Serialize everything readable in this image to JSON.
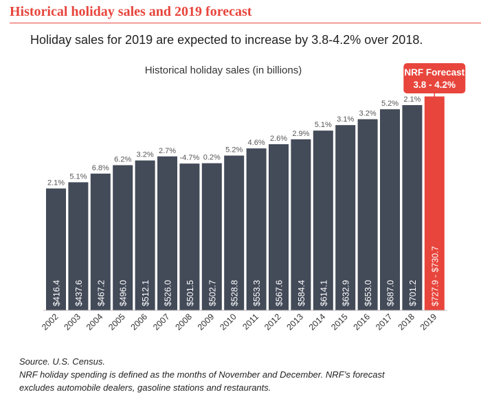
{
  "header": {
    "title": "Historical holiday sales and 2019 forecast",
    "subtitle": "Holiday sales for 2019 are expected to increase by 3.8-4.2% over 2018."
  },
  "callout": {
    "line1": "NRF Forecast",
    "line2": "3.8 - 4.2%"
  },
  "colors": {
    "accent": "#e8453c",
    "bar": "#434a58",
    "forecast_bar": "#e8453c"
  },
  "chart_data": {
    "type": "bar",
    "title": "Historical holiday sales (in billions)",
    "xlabel": "",
    "ylabel": "",
    "ylim": [
      0,
      760
    ],
    "grid": false,
    "legend": "none",
    "categories": [
      "2002",
      "2003",
      "2004",
      "2005",
      "2006",
      "2007",
      "2008",
      "2009",
      "2010",
      "2011",
      "2012",
      "2013",
      "2014",
      "2015",
      "2016",
      "2017",
      "2018",
      "2019"
    ],
    "values": [
      416.4,
      437.6,
      467.2,
      496.0,
      512.1,
      526.0,
      501.5,
      502.7,
      528.8,
      553.3,
      567.6,
      584.4,
      614.1,
      632.9,
      653.0,
      687.0,
      701.2,
      730.7
    ],
    "value_labels": [
      "$416.4",
      "$437.6",
      "$467.2",
      "$496.0",
      "$512.1",
      "$526.0",
      "$501.5",
      "$502.7",
      "$528.8",
      "$553.3",
      "$567.6",
      "$584.4",
      "$614.1",
      "$632.9",
      "$653.0",
      "$687.0",
      "$701.2",
      "$727.9 - $730.7"
    ],
    "growth_labels": [
      "2.1%",
      "5.1%",
      "6.8%",
      "6.2%",
      "3.2%",
      "2.7%",
      "-4.7%",
      "0.2%",
      "5.2%",
      "4.6%",
      "2.6%",
      "2.9%",
      "5.1%",
      "3.1%",
      "3.2%",
      "5.2%",
      "2.1%",
      ""
    ],
    "forecast_category": "2019"
  },
  "footnotes": {
    "source": "Source. U.S. Census.",
    "line1": "NRF holiday spending is defined as the months of November and December. NRF’s forecast",
    "line2": "excludes automobile dealers, gasoline stations and restaurants."
  }
}
